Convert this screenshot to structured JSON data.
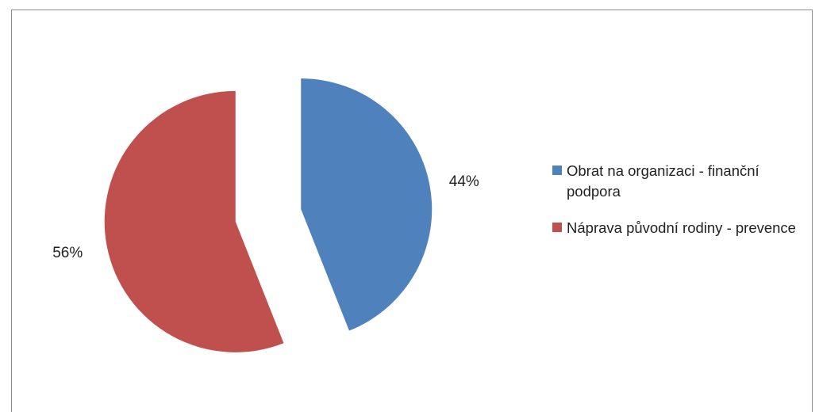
{
  "chart_data": {
    "type": "pie",
    "title": "",
    "start_angle_deg": 0,
    "exploded": true,
    "slices": [
      {
        "label": "Obrat na organizaci - finanční podpora",
        "value": 44,
        "value_label": "44%",
        "color": "#4f81bd"
      },
      {
        "label": "Náprava původní rodiny - prevence",
        "value": 56,
        "value_label": "56%",
        "color": "#c0504d"
      }
    ],
    "legend": {
      "position": "right"
    }
  }
}
